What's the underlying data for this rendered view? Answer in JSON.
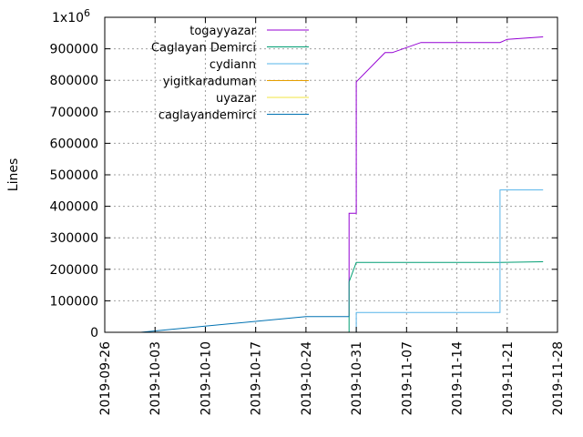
{
  "chart_data": {
    "type": "line",
    "ylabel": "Lines",
    "xlabel": "",
    "y_multiplier_label": {
      "base": "1x10",
      "exponent": "6"
    },
    "ylim": [
      0,
      1000000
    ],
    "y_ticks": [
      0,
      100000,
      200000,
      300000,
      400000,
      500000,
      600000,
      700000,
      800000,
      900000
    ],
    "xlim": [
      "2019-09-26",
      "2019-11-28"
    ],
    "x_ticks": [
      "2019-09-26",
      "2019-10-03",
      "2019-10-10",
      "2019-10-17",
      "2019-10-24",
      "2019-10-31",
      "2019-11-07",
      "2019-11-14",
      "2019-11-21",
      "2019-11-28"
    ],
    "grid": true,
    "legend_position": "top-left",
    "series": [
      {
        "name": "togayyazar",
        "color": "#9400d3",
        "points": [
          [
            "2019-10-30",
            50000
          ],
          [
            "2019-10-30",
            378000
          ],
          [
            "2019-10-31",
            378000
          ],
          [
            "2019-10-31",
            795000
          ],
          [
            "2019-11-04",
            888000
          ],
          [
            "2019-11-05",
            888000
          ],
          [
            "2019-11-09",
            920000
          ],
          [
            "2019-11-20",
            920000
          ],
          [
            "2019-11-21",
            930000
          ],
          [
            "2019-11-26",
            938000
          ]
        ]
      },
      {
        "name": "Caglayan Demirci",
        "color": "#009e73",
        "points": [
          [
            "2019-10-30",
            0
          ],
          [
            "2019-10-30",
            160000
          ],
          [
            "2019-10-31",
            222000
          ],
          [
            "2019-11-20",
            222000
          ],
          [
            "2019-11-26",
            224000
          ]
        ]
      },
      {
        "name": "cydiann",
        "color": "#56b4e9",
        "points": [
          [
            "2019-10-31",
            0
          ],
          [
            "2019-10-31",
            63000
          ],
          [
            "2019-11-20",
            63000
          ],
          [
            "2019-11-20",
            452000
          ],
          [
            "2019-11-26",
            452000
          ]
        ]
      },
      {
        "name": "yigitkaraduman",
        "color": "#e69f00",
        "points": []
      },
      {
        "name": "uyazar",
        "color": "#f0e442",
        "points": []
      },
      {
        "name": "caglayandemirci",
        "color": "#0072b2",
        "points": [
          [
            "2019-10-01",
            0
          ],
          [
            "2019-10-24",
            50000
          ],
          [
            "2019-10-30",
            50000
          ]
        ]
      }
    ]
  }
}
